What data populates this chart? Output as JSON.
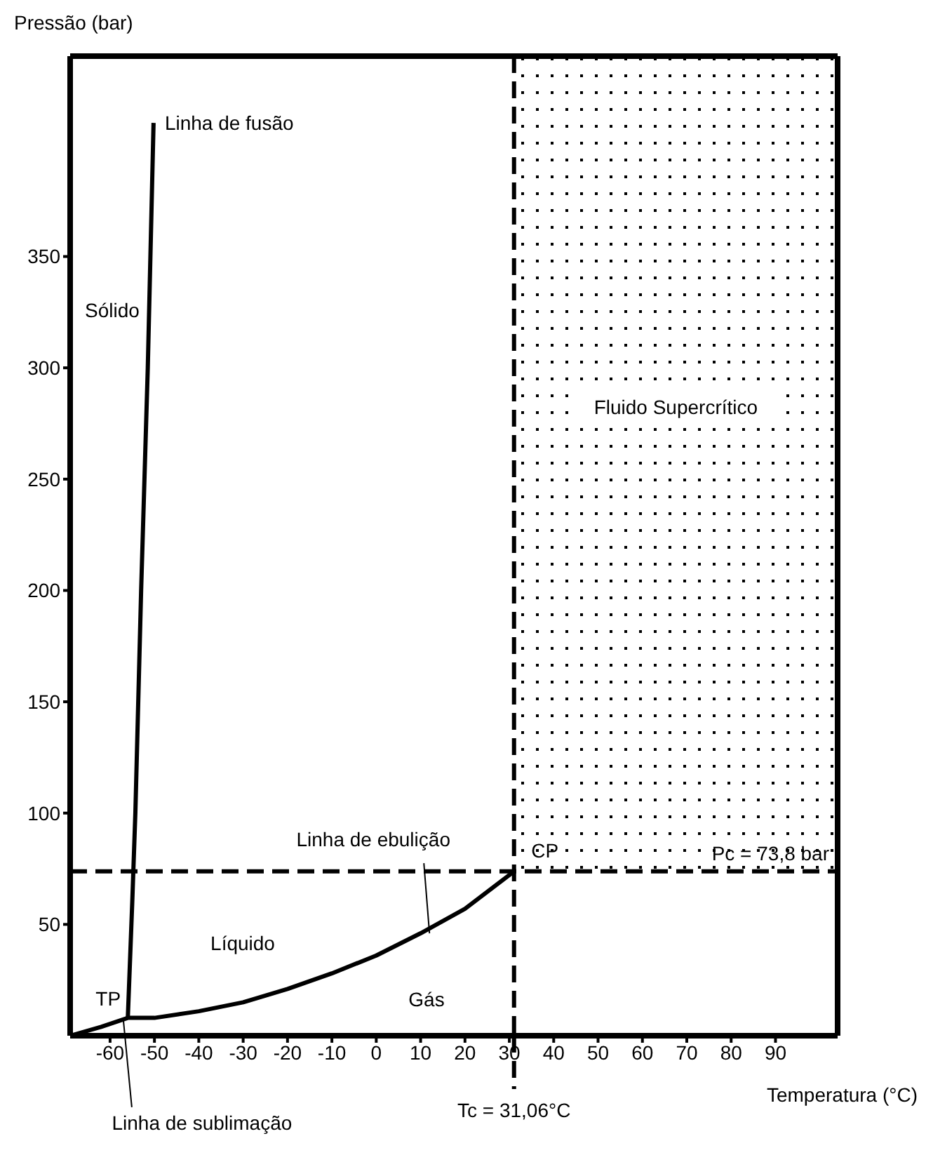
{
  "chart_data": {
    "type": "line",
    "xlabel": "Temperatura (°C)",
    "ylabel": "Pressão (bar)",
    "xlim": [
      -69,
      104
    ],
    "xticks": [
      -60,
      -50,
      -40,
      -30,
      -20,
      -10,
      0,
      10,
      20,
      30,
      40,
      50,
      60,
      70,
      80,
      90
    ],
    "ylim": [
      0,
      440
    ],
    "yticks": [
      50,
      100,
      150,
      200,
      250,
      300,
      350
    ],
    "series": [
      {
        "color": "#000000",
        "x": [
          -56,
          -55,
          -54.3,
          -53,
          -51.5,
          -50.2
        ],
        "values": [
          8,
          60,
          100,
          200,
          300,
          410
        ]
      },
      {
        "color": "#000000",
        "x": [
          -69,
          -62,
          -56,
          -50,
          -40,
          -30,
          -20,
          -10,
          0,
          10,
          20,
          31.06
        ],
        "values": [
          0,
          4,
          8,
          8,
          11,
          15,
          21,
          28,
          36,
          46,
          57,
          73.8
        ]
      }
    ],
    "ref_lines": [
      {
        "axis": "x",
        "value": 31.06,
        "label": "Tc = 31,06°C",
        "line_style": "dashed",
        "color": "#000000"
      },
      {
        "axis": "y",
        "value": 73.8,
        "label": "Pc = 73,8 bar",
        "line_style": "dashed",
        "color": "#000000"
      }
    ],
    "bands": [
      {
        "axis": "x",
        "from": 31.06,
        "to": 104,
        "label": "Fluido Supercrítico",
        "color": "#000000"
      }
    ],
    "annotations": [
      {
        "text": "Linha de fusão",
        "x": -50.2,
        "y": 410
      },
      {
        "text": "Linha de ebulição",
        "x": 12,
        "y": 46
      },
      {
        "text": "TP",
        "x": -56,
        "y": 8
      },
      {
        "text": "CP",
        "x": 31.06,
        "y": 73.8
      },
      {
        "text": "Linha de sublimação",
        "x": -57,
        "y": 7
      },
      "Sólido",
      "Líquido",
      "Gás"
    ],
    "marker": "none",
    "line_style": "solid"
  }
}
